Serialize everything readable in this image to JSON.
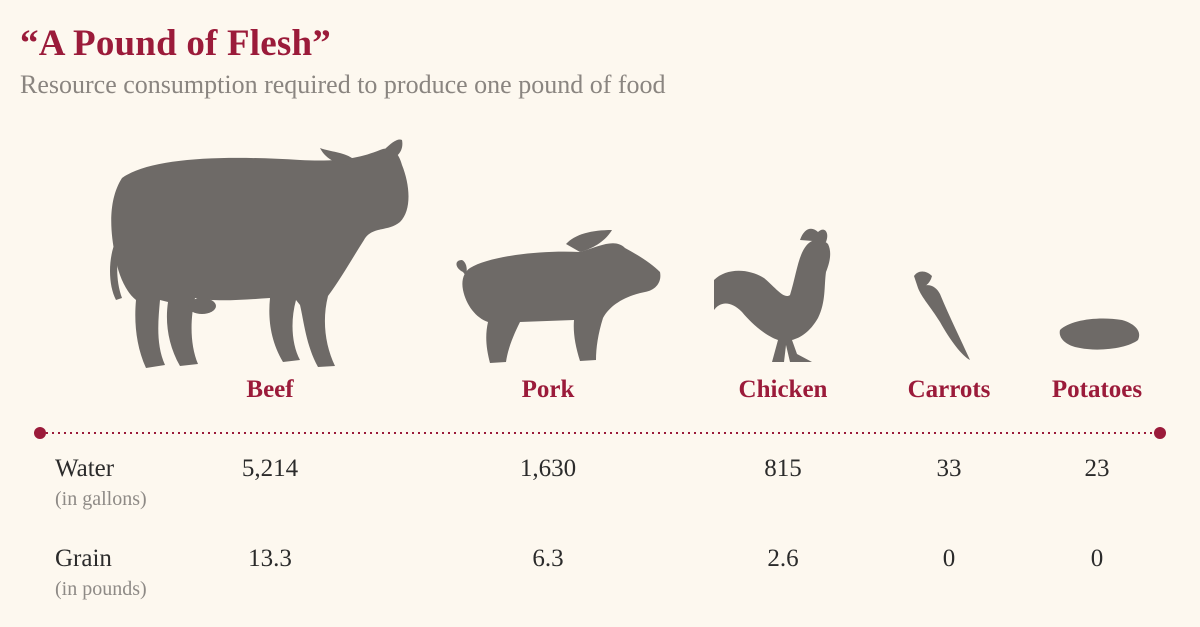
{
  "header": {
    "title": "“A Pound of Flesh”",
    "subtitle": "Resource consumption required to produce one pound of food"
  },
  "colors": {
    "accent": "#9b1b3a",
    "silhouette": "#6e6a67",
    "background": "#fdf8ef",
    "text": "#2b2b2b",
    "muted": "#8e8a86"
  },
  "icons": [
    "cow-icon",
    "pig-icon",
    "rooster-icon",
    "carrot-icon",
    "potato-icon"
  ],
  "rows": [
    {
      "label": "Water",
      "unit": "(in gallons)"
    },
    {
      "label": "Grain",
      "unit": "(in pounds)"
    }
  ],
  "chart_data": {
    "type": "table",
    "title": "“A Pound of Flesh”",
    "subtitle": "Resource consumption required to produce one pound of food",
    "categories": [
      "Beef",
      "Pork",
      "Chicken",
      "Carrots",
      "Potatoes"
    ],
    "series": [
      {
        "name": "Water",
        "unit": "(in gallons)",
        "values": [
          5214,
          1630,
          815,
          33,
          23
        ],
        "labels": [
          "5,214",
          "1,630",
          "815",
          "33",
          "23"
        ]
      },
      {
        "name": "Grain",
        "unit": "(in pounds)",
        "values": [
          13.3,
          6.3,
          2.6,
          0,
          0
        ],
        "labels": [
          "13.3",
          "6.3",
          "2.6",
          "0",
          "0"
        ]
      }
    ]
  }
}
